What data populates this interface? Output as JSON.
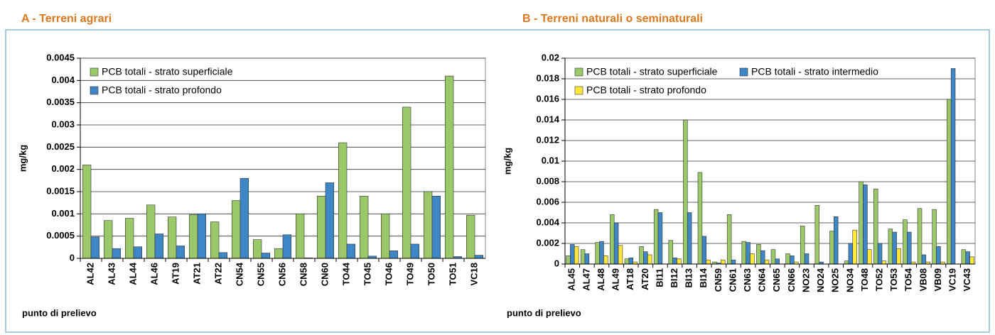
{
  "chart_data": [
    {
      "type": "bar",
      "title": "A - Terreni agrari",
      "ylabel": "mg/kg",
      "xlabel": "punto di prelievo",
      "categories": [
        "AL42",
        "AL43",
        "AL44",
        "AL46",
        "AT19",
        "AT21",
        "AT22",
        "CN54",
        "CN55",
        "CN56",
        "CN58",
        "CN60",
        "TO44",
        "TO45",
        "TO46",
        "TO49",
        "TO50",
        "TO51",
        "VC18"
      ],
      "series": [
        {
          "name": "PCB totali - strato superficiale",
          "color": "#9bc96a",
          "values": [
            0.0021,
            0.00085,
            0.0009,
            0.0012,
            0.00093,
            0.00098,
            0.00082,
            0.0013,
            0.00042,
            0.00022,
            0.001,
            0.0014,
            0.0026,
            0.0014,
            0.001,
            0.0034,
            0.0015,
            0.0041,
            0.00097
          ]
        },
        {
          "name": "PCB totali - strato profondo",
          "color": "#3f86c6",
          "values": [
            0.00048,
            0.00022,
            0.00026,
            0.00055,
            0.00028,
            0.001,
            0.00013,
            0.0018,
            0.00012,
            0.00053,
            1e-05,
            0.0017,
            0.00032,
            5e-05,
            0.00017,
            0.00032,
            0.0014,
            4e-05,
            7e-05
          ]
        }
      ],
      "ylim": [
        0,
        0.0045
      ],
      "yticks": [
        0,
        0.0005,
        0.001,
        0.0015,
        0.002,
        0.0025,
        0.003,
        0.0035,
        0.004,
        0.0045
      ],
      "grid": true,
      "legend": "top-left"
    },
    {
      "type": "bar",
      "title": "B - Terreni naturali o seminaturali",
      "ylabel": "mg/kg",
      "xlabel": "punto di prelievo",
      "categories": [
        "AL45",
        "AL47",
        "AL48",
        "AL49",
        "AT18",
        "AT20",
        "BI11",
        "BI12",
        "BI13",
        "BI14",
        "CN59",
        "CN61",
        "CN63",
        "CN64",
        "CN65",
        "CN66",
        "NO23",
        "NO24",
        "NO25",
        "NO34",
        "TO48",
        "TO52",
        "TO53",
        "TO54",
        "VB08",
        "VB09",
        "VC19",
        "VC43"
      ],
      "series": [
        {
          "name": "PCB totali - strato superficiale",
          "color": "#9bc96a",
          "values": [
            0.0008,
            0.0014,
            0.0021,
            0.0048,
            0.0005,
            0.0017,
            0.0053,
            0.0023,
            0.014,
            0.0089,
            0.0002,
            0.0048,
            0.0022,
            0.0019,
            0.0014,
            0.001,
            0.0037,
            0.0057,
            0.0032,
            0.0003,
            0.008,
            0.0073,
            0.0034,
            0.0043,
            0.0054,
            0.0053,
            0.016,
            0.0014
          ]
        },
        {
          "name": "PCB totali - strato intermedio",
          "color": "#3f86c6",
          "values": [
            0.0019,
            0.001,
            0.0022,
            0.004,
            0.0006,
            0.0012,
            0.005,
            0.0006,
            0.005,
            0.0027,
            0.0001,
            0.0004,
            0.0021,
            0.0013,
            0.0005,
            0.0008,
            0.001,
            0.0002,
            0.0046,
            0.002,
            0.0077,
            0.002,
            0.0031,
            0.0031,
            0.0009,
            0.0017,
            0.019,
            0.0012
          ]
        },
        {
          "name": "PCB totali - strato profondo",
          "color": "#ffe83a",
          "values": [
            0.0017,
            0,
            0.0008,
            0.0018,
            0.0002,
            0.0009,
            0,
            0.0005,
            0,
            0.0004,
            0.0004,
            0,
            0.001,
            0.0004,
            0,
            0.0002,
            0,
            0,
            0,
            0.0033,
            0.0014,
            0.0003,
            0.0015,
            0.0002,
            0.0002,
            0.0002,
            0,
            0.0007
          ]
        }
      ],
      "ylim": [
        0,
        0.02
      ],
      "yticks": [
        0,
        0.002,
        0.004,
        0.006,
        0.008,
        0.01,
        0.012,
        0.014,
        0.016,
        0.018,
        0.02
      ],
      "grid": true,
      "legend": "top-left"
    }
  ]
}
